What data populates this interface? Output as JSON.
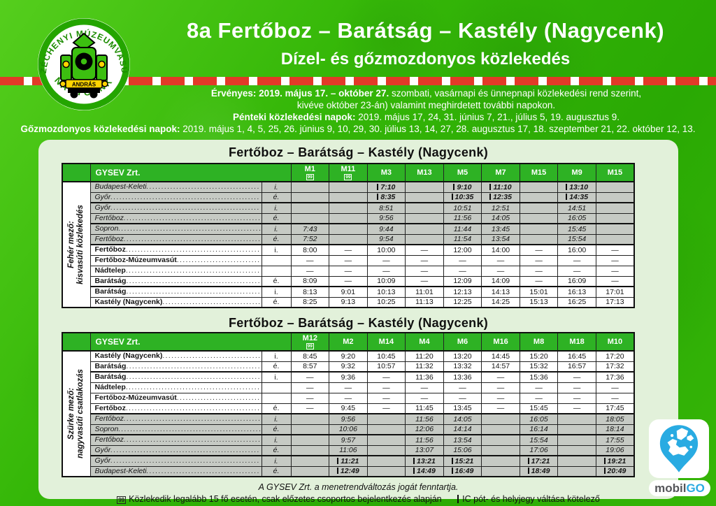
{
  "logo": {
    "arc_top": "SZÉCHENYI MÚZEUMVASÚT",
    "arc_bottom": "NAGYCENK",
    "loco_label": "ANDRÁS"
  },
  "header": {
    "title": "8a Fertőboz – Barátság – Kastély (Nagycenk)",
    "subtitle": "Dízel- és gőzmozdonyos közlekedés"
  },
  "validity": {
    "line1_bold": "Érvényes: 2019. május 17. – október 27.",
    "line1_rest": " szombati, vasárnapi és ünnepnapi közlekedési rend szerint,",
    "line2": "kivéve október 23-án) valamint meghirdetett további napokon.",
    "line3_bold": "Pénteki közlekedési napok:",
    "line3_rest": " 2019. május 17, 24, 31. június 7, 21., július 5, 19. augusztus 9.",
    "line4_bold": "Gőzmozdonyos közlekedési napok:",
    "line4_rest": " 2019. május 1, 4, 5, 25, 26. június 9, 10, 29, 30. július 13, 14, 27, 28. augusztus 17, 18. szeptember 21, 22. október 12, 13."
  },
  "tables": [
    {
      "title": "Fertőboz – Barátság – Kastély (Nagycenk)",
      "operator": "GYSEV Zrt.",
      "side_label": [
        "Fehér mező:",
        "kisvasúti közlekedés"
      ],
      "columns": [
        {
          "label": "M1",
          "note": "99"
        },
        {
          "label": "M11",
          "note": "99"
        },
        {
          "label": "M3"
        },
        {
          "label": "M13"
        },
        {
          "label": "M5"
        },
        {
          "label": "M7"
        },
        {
          "label": "M15"
        },
        {
          "label": "M9"
        },
        {
          "label": "M15"
        }
      ],
      "groups": [
        {
          "shade": "grey",
          "rows": [
            {
              "station": "Budapest-Keleti",
              "dir": "i.",
              "ic": true,
              "times": [
                "",
                "",
                "|7:10",
                "",
                "|9:10",
                "|11:10",
                "",
                "|13:10",
                ""
              ]
            },
            {
              "station": "Győr",
              "dir": "é.",
              "ic": true,
              "times": [
                "",
                "",
                "|8:35",
                "",
                "|10:35",
                "|12:35",
                "",
                "|14:35",
                ""
              ]
            }
          ]
        },
        {
          "shade": "grey",
          "rows": [
            {
              "station": "Győr",
              "dir": "i.",
              "times": [
                "",
                "",
                "8:51",
                "",
                "10:51",
                "12:51",
                "",
                "14:51",
                ""
              ]
            },
            {
              "station": "Fertőboz",
              "dir": "é.",
              "times": [
                "",
                "",
                "9:56",
                "",
                "11:56",
                "14:05",
                "",
                "16:05",
                ""
              ]
            }
          ]
        },
        {
          "shade": "grey",
          "rows": [
            {
              "station": "Sopron",
              "dir": "i.",
              "times": [
                "7:43",
                "",
                "9:44",
                "",
                "11:44",
                "13:45",
                "",
                "15:45",
                ""
              ]
            },
            {
              "station": "Fertőboz",
              "dir": "é.",
              "times": [
                "7:52",
                "",
                "9:54",
                "",
                "11:54",
                "13:54",
                "",
                "15:54",
                ""
              ]
            }
          ]
        },
        {
          "shade": "white",
          "rows": [
            {
              "station": "Fertőboz",
              "dir": "i.",
              "times": [
                "8:00",
                "—",
                "10:00",
                "—",
                "12:00",
                "14:00",
                "—",
                "16:00",
                "—"
              ]
            },
            {
              "station": "Fertőboz-Múzeumvasút",
              "dir": "",
              "times": [
                "—",
                "—",
                "—",
                "—",
                "—",
                "—",
                "—",
                "—",
                "—"
              ]
            },
            {
              "station": "Nádtelep",
              "dir": "",
              "times": [
                "—",
                "—",
                "—",
                "—",
                "—",
                "—",
                "—",
                "—",
                "—"
              ]
            },
            {
              "station": "Barátság",
              "dir": "é.",
              "times": [
                "8:09",
                "—",
                "10:09",
                "—",
                "12:09",
                "14:09",
                "—",
                "16:09",
                "—"
              ]
            }
          ]
        },
        {
          "shade": "white",
          "rows": [
            {
              "station": "Barátság",
              "dir": "i.",
              "times": [
                "8:13",
                "9:01",
                "10:13",
                "11:01",
                "12:13",
                "14:13",
                "15:01",
                "16:13",
                "17:01"
              ]
            },
            {
              "station": "Kastély (Nagycenk)",
              "dir": "é.",
              "times": [
                "8:25",
                "9:13",
                "10:25",
                "11:13",
                "12:25",
                "14:25",
                "15:13",
                "16:25",
                "17:13"
              ]
            }
          ]
        }
      ]
    },
    {
      "title": "Fertőboz – Barátság – Kastély (Nagycenk)",
      "operator": "GYSEV Zrt.",
      "side_label": [
        "Szürke mező:",
        "nagyvasúti csatlakozás"
      ],
      "columns": [
        {
          "label": "M12",
          "note": "99"
        },
        {
          "label": "M2"
        },
        {
          "label": "M14"
        },
        {
          "label": "M4"
        },
        {
          "label": "M6"
        },
        {
          "label": "M16"
        },
        {
          "label": "M8"
        },
        {
          "label": "M18"
        },
        {
          "label": "M10"
        }
      ],
      "groups": [
        {
          "shade": "white",
          "rows": [
            {
              "station": "Kastély (Nagycenk)",
              "dir": "i.",
              "times": [
                "8:45",
                "9:20",
                "10:45",
                "11:20",
                "13:20",
                "14:45",
                "15:20",
                "16:45",
                "17:20"
              ]
            },
            {
              "station": "Barátság",
              "dir": "é.",
              "times": [
                "8:57",
                "9:32",
                "10:57",
                "11:32",
                "13:32",
                "14:57",
                "15:32",
                "16:57",
                "17:32"
              ]
            }
          ]
        },
        {
          "shade": "white",
          "rows": [
            {
              "station": "Barátság",
              "dir": "i.",
              "times": [
                "—",
                "9:36",
                "—",
                "11:36",
                "13:36",
                "—",
                "15:36",
                "—",
                "17:36"
              ]
            },
            {
              "station": "Nádtelep",
              "dir": "",
              "times": [
                "—",
                "—",
                "—",
                "—",
                "—",
                "—",
                "—",
                "—",
                "—"
              ]
            },
            {
              "station": "Fertőboz-Múzeumvasút",
              "dir": "",
              "times": [
                "—",
                "—",
                "—",
                "—",
                "—",
                "—",
                "—",
                "—",
                "—"
              ]
            },
            {
              "station": "Fertőboz",
              "dir": "é.",
              "times": [
                "—",
                "9:45",
                "—",
                "11:45",
                "13:45",
                "—",
                "15:45",
                "—",
                "17:45"
              ]
            }
          ]
        },
        {
          "shade": "grey",
          "rows": [
            {
              "station": "Fertőboz",
              "dir": "i.",
              "times": [
                "",
                "9:56",
                "",
                "11:56",
                "14:05",
                "",
                "16:05",
                "",
                "18:05"
              ]
            },
            {
              "station": "Sopron",
              "dir": "é.",
              "times": [
                "",
                "10:06",
                "",
                "12:06",
                "14:14",
                "",
                "16:14",
                "",
                "18:14"
              ]
            }
          ]
        },
        {
          "shade": "grey",
          "rows": [
            {
              "station": "Fertőboz",
              "dir": "i.",
              "times": [
                "",
                "9:57",
                "",
                "11:56",
                "13:54",
                "",
                "15:54",
                "",
                "17:55"
              ]
            },
            {
              "station": "Győr",
              "dir": "é.",
              "times": [
                "",
                "11:06",
                "",
                "13:07",
                "15:06",
                "",
                "17:06",
                "",
                "19:06"
              ]
            }
          ]
        },
        {
          "shade": "grey",
          "rows": [
            {
              "station": "Győr",
              "dir": "i.",
              "ic": true,
              "times": [
                "",
                "|11:21",
                "",
                "|13:21",
                "|15:21",
                "",
                "|17:21",
                "",
                "|19:21"
              ]
            },
            {
              "station": "Budapest-Keleti",
              "dir": "é.",
              "ic": true,
              "times": [
                "",
                "|12:49",
                "",
                "|14:49",
                "|16:49",
                "",
                "|18:49",
                "",
                "|20:49"
              ]
            }
          ]
        }
      ]
    }
  ],
  "footer": {
    "disclaimer": "A GYSEV Zrt. a menetrendváltozás jogát fenntartja.",
    "icon_group": "99",
    "legend_group": "Közlekedik legalább 15 fő esetén, csak előzetes csoportos bejelentkezés alapján",
    "legend_ic": "IC pót- és helyjegy váltása kötelező"
  },
  "mobilgo": {
    "mobil": "mobil",
    "go": "GO"
  },
  "colors": {
    "brand_green": "#2eb224",
    "panel_green": "#e2f1da",
    "grey_row": "#c6cac4",
    "stripe_red": "#e23a28",
    "mobilgo_blue": "#29abe2",
    "loco_yellow": "#ffd400"
  }
}
